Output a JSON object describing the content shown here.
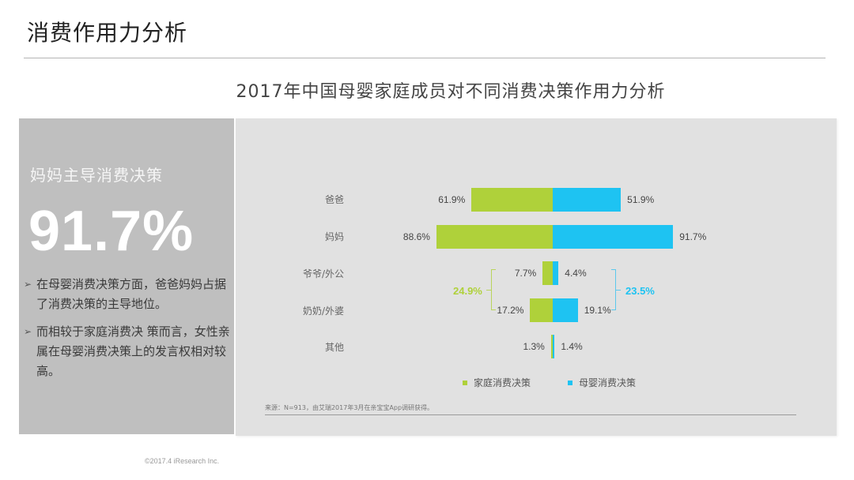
{
  "page": {
    "title": "消费作用力分析",
    "footer": "©2017.4 iResearch Inc."
  },
  "left_panel": {
    "heading": "妈妈主导消费决策",
    "big_value": "91.7%",
    "bullets": [
      "在母婴消费决策方面，爸爸妈妈占据了消费决策的主导地位。",
      "而相较于家庭消费决 策而言，女性亲属在母婴消费决策上的发言权相对较高。"
    ]
  },
  "chart_data": {
    "type": "bar",
    "orientation": "horizontal-diverging",
    "title": "2017年中国母婴家庭成员对不同消费决策作用力分析",
    "categories": [
      "爸爸",
      "妈妈",
      "爷爷/外公",
      "奶奶/外婆",
      "其他"
    ],
    "series": [
      {
        "name": "家庭消费决策",
        "color": "#afd13a",
        "side": "left",
        "values": [
          61.9,
          88.6,
          7.7,
          17.2,
          1.3
        ]
      },
      {
        "name": "母婴消费决策",
        "color": "#1ec3f2",
        "side": "right",
        "values": [
          51.9,
          91.7,
          4.4,
          19.1,
          1.4
        ]
      }
    ],
    "value_labels": {
      "left": [
        "61.9%",
        "88.6%",
        "7.7%",
        "17.2%",
        "1.3%"
      ],
      "right": [
        "51.9%",
        "91.7%",
        "4.4%",
        "19.1%",
        "1.4%"
      ]
    },
    "annotations": [
      {
        "text": "24.9%",
        "series": "家庭消费决策",
        "spans": [
          "爷爷/外公",
          "奶奶/外婆"
        ],
        "color": "#afd13a"
      },
      {
        "text": "23.5%",
        "series": "母婴消费决策",
        "spans": [
          "爷爷/外公",
          "奶奶/外婆"
        ],
        "color": "#1ec3f2"
      }
    ],
    "legend": [
      "家庭消费决策",
      "母婴消费决策"
    ],
    "legend_position": "bottom",
    "grid": false,
    "source": "来源：N=913，由艾瑞2017年3月在亲宝宝App调研获得。"
  }
}
